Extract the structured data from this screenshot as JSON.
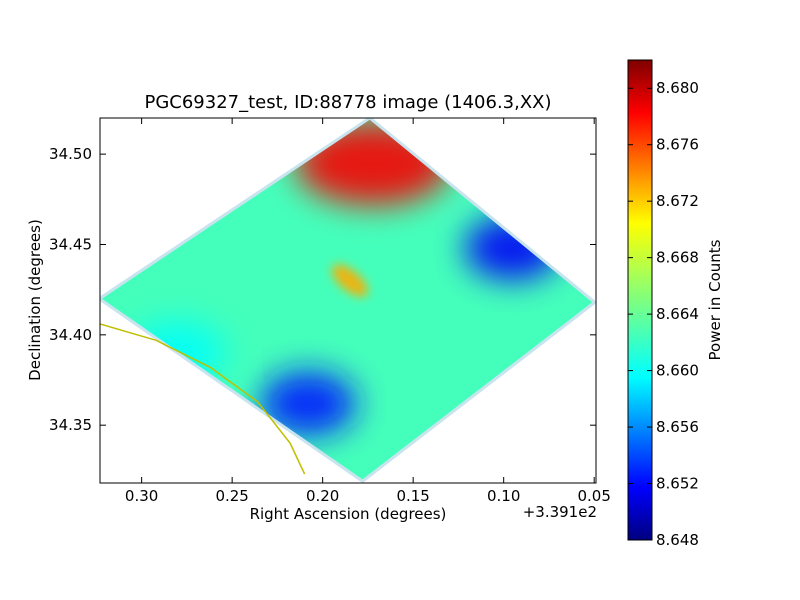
{
  "chart_data": {
    "type": "heatmap",
    "title": "PGC69327_test, ID:88778 image (1406.3,XX)",
    "xlabel": "Right Ascension (degrees)",
    "ylabel": "Declination (degrees)",
    "x_offset_label": "+3.391e2",
    "xlim": [
      0.323,
      0.049
    ],
    "ylim": [
      34.318,
      34.52
    ],
    "x_ticks": [
      0.3,
      0.25,
      0.2,
      0.15,
      0.1,
      0.05
    ],
    "x_tick_labels": [
      "0.30",
      "0.25",
      "0.20",
      "0.15",
      "0.10",
      "0.05"
    ],
    "y_ticks": [
      34.35,
      34.4,
      34.45,
      34.5
    ],
    "y_tick_labels": [
      "34.35",
      "34.40",
      "34.45",
      "34.50"
    ],
    "colorbar": {
      "label": "Power in Counts",
      "colormap": "jet",
      "range": [
        8.648,
        8.682
      ],
      "ticks": [
        8.648,
        8.652,
        8.656,
        8.66,
        8.664,
        8.668,
        8.672,
        8.676,
        8.68
      ],
      "tick_labels": [
        "8.648",
        "8.652",
        "8.656",
        "8.660",
        "8.664",
        "8.668",
        "8.672",
        "8.676",
        "8.680"
      ]
    },
    "background_level": 8.663,
    "image_outline": [
      {
        "ra": 0.174,
        "dec": 34.519
      },
      {
        "ra": 0.051,
        "dec": 34.418
      },
      {
        "ra": 0.178,
        "dec": 34.32
      },
      {
        "ra": 0.322,
        "dec": 34.42
      }
    ],
    "features": [
      {
        "ra": 0.172,
        "dec": 34.495,
        "value": 8.678,
        "kind": "peak"
      },
      {
        "ra": 0.095,
        "dec": 34.448,
        "value": 8.652,
        "kind": "trough"
      },
      {
        "ra": 0.208,
        "dec": 34.362,
        "value": 8.653,
        "kind": "trough"
      },
      {
        "ra": 0.185,
        "dec": 34.43,
        "value": 8.672,
        "kind": "ridge"
      },
      {
        "ra": 0.28,
        "dec": 34.39,
        "value": 8.661,
        "kind": "trough"
      }
    ],
    "overlay_arc": {
      "color": "#bfbf00",
      "points": [
        {
          "ra": 0.323,
          "dec": 34.406
        },
        {
          "ra": 0.292,
          "dec": 34.397
        },
        {
          "ra": 0.262,
          "dec": 34.382
        },
        {
          "ra": 0.236,
          "dec": 34.363
        },
        {
          "ra": 0.218,
          "dec": 34.34
        },
        {
          "ra": 0.21,
          "dec": 34.323
        }
      ]
    }
  }
}
